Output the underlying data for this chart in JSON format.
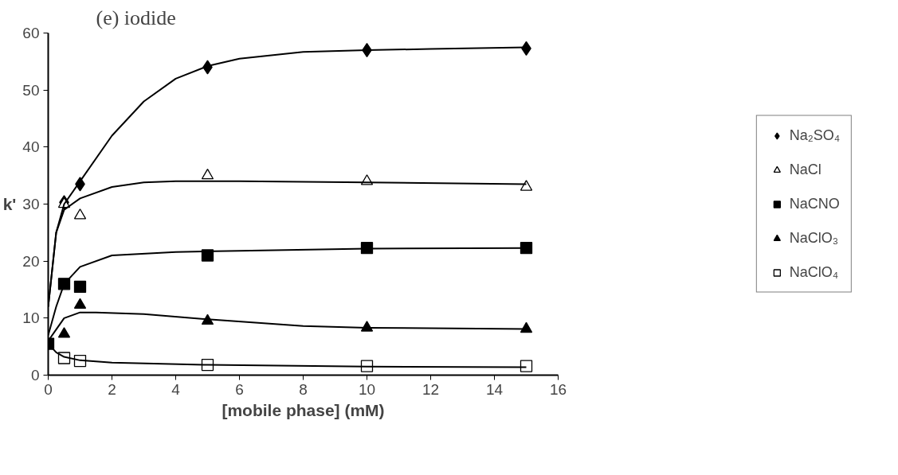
{
  "chart_data": {
    "type": "scatter",
    "title": "(e) iodide",
    "xlabel": "[mobile phase] (mM)",
    "ylabel": "k'",
    "xlim": [
      0,
      16
    ],
    "ylim": [
      0,
      60
    ],
    "xticks": [
      0,
      2,
      4,
      6,
      8,
      10,
      12,
      14,
      16
    ],
    "yticks": [
      0,
      10,
      20,
      30,
      40,
      50,
      60
    ],
    "grid": false,
    "legend": "right",
    "series": [
      {
        "name": "Na₂SO₄",
        "color": "#000000",
        "marker": "diamond",
        "x": [
          0.5,
          1,
          5,
          10,
          15
        ],
        "values": [
          30.3,
          33.5,
          54,
          57,
          57.3
        ]
      },
      {
        "name": "NaCl",
        "color": "#ffffff",
        "marker": "triangle",
        "x": [
          0.5,
          1,
          5,
          10,
          15
        ],
        "values": [
          30,
          28,
          35,
          34,
          33
        ]
      },
      {
        "name": "NaCNO",
        "color": "#000000",
        "marker": "square",
        "x": [
          0,
          0.5,
          1,
          5,
          10,
          15
        ],
        "values": [
          5.5,
          16,
          15.5,
          21,
          22.3,
          22.3
        ]
      },
      {
        "name": "NaClO₃",
        "color": "#000000",
        "marker": "triangle",
        "x": [
          0.5,
          1,
          5,
          10,
          15
        ],
        "values": [
          7.2,
          12.3,
          9.5,
          8.3,
          8.1
        ]
      },
      {
        "name": "NaClO₄",
        "color": "#ffffff",
        "marker": "square",
        "x": [
          0.5,
          1,
          5,
          10,
          15
        ],
        "values": [
          3,
          2.5,
          1.8,
          1.6,
          1.6
        ]
      },
      {
        "type": "line",
        "color": "#000000",
        "marker": "none",
        "x": [
          0,
          0.25,
          0.5,
          1,
          2,
          3,
          4,
          5,
          6,
          8,
          10,
          12,
          15
        ],
        "values": [
          12,
          25,
          30,
          34,
          42,
          48,
          52,
          54.2,
          55.5,
          56.7,
          57,
          57.2,
          57.5
        ]
      },
      {
        "type": "line",
        "color": "#000000",
        "marker": "none",
        "x": [
          0,
          0.25,
          0.5,
          1,
          2,
          3,
          4,
          6,
          10,
          15
        ],
        "values": [
          12,
          25,
          29,
          31,
          33,
          33.8,
          34,
          34,
          33.8,
          33.5
        ]
      },
      {
        "type": "line",
        "color": "#000000",
        "marker": "none",
        "x": [
          0,
          0.25,
          0.5,
          1,
          2,
          4,
          6,
          10,
          15
        ],
        "values": [
          7,
          12,
          16,
          19,
          21,
          21.6,
          21.8,
          22.2,
          22.3
        ]
      },
      {
        "type": "line",
        "color": "#000000",
        "marker": "none",
        "x": [
          0,
          0.25,
          0.5,
          1,
          1.5,
          3,
          5,
          8,
          10,
          15
        ],
        "values": [
          6,
          8,
          10,
          11,
          11,
          10.7,
          9.8,
          8.6,
          8.3,
          8.1
        ]
      },
      {
        "type": "line",
        "color": "#000000",
        "marker": "none",
        "x": [
          0,
          0.25,
          0.5,
          1,
          2,
          5,
          10,
          15
        ],
        "values": [
          5.5,
          4,
          3.2,
          2.6,
          2.2,
          1.8,
          1.5,
          1.4
        ]
      }
    ]
  }
}
